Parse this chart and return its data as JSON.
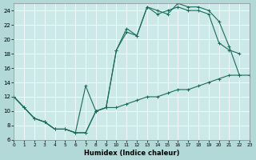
{
  "xlabel": "Humidex (Indice chaleur)",
  "bg_color": "#b2d8d8",
  "plot_bg_color": "#cce8e8",
  "grid_color": "#ffffff",
  "line_color": "#1a6b5a",
  "xlim": [
    0,
    23
  ],
  "ylim": [
    6,
    25
  ],
  "xticks": [
    0,
    1,
    2,
    3,
    4,
    5,
    6,
    7,
    8,
    9,
    10,
    11,
    12,
    13,
    14,
    15,
    16,
    17,
    18,
    19,
    20,
    21,
    22,
    23
  ],
  "yticks": [
    6,
    8,
    10,
    12,
    14,
    16,
    18,
    20,
    22,
    24
  ],
  "line1": {
    "x": [
      0,
      1,
      2,
      3,
      4,
      5,
      6,
      7,
      8,
      9,
      10,
      11,
      12,
      13,
      14,
      15,
      16,
      17,
      18,
      19,
      20,
      21,
      22,
      23
    ],
    "y": [
      12,
      10.5,
      9,
      8.5,
      7.5,
      7.5,
      7,
      7,
      10,
      10.5,
      10.5,
      11,
      11.5,
      12,
      12,
      12.5,
      13,
      13,
      13.5,
      14,
      14.5,
      15,
      15,
      15
    ]
  },
  "line2": {
    "x": [
      0,
      1,
      2,
      3,
      4,
      5,
      6,
      7,
      8,
      9,
      10,
      11,
      12,
      13,
      14,
      15,
      16,
      17,
      18,
      19,
      20,
      21,
      22
    ],
    "y": [
      12,
      10.5,
      9,
      8.5,
      7.5,
      7.5,
      7,
      7,
      10,
      10.5,
      18.5,
      21.5,
      20.5,
      24.5,
      24,
      23.5,
      25,
      24.5,
      24.5,
      24,
      22.5,
      19,
      15
    ]
  },
  "line3": {
    "x": [
      0,
      1,
      2,
      3,
      4,
      5,
      6,
      7,
      8,
      9,
      10,
      11,
      12,
      13,
      14,
      15,
      16,
      17,
      18,
      19,
      20,
      21,
      22
    ],
    "y": [
      12,
      10.5,
      9,
      8.5,
      7.5,
      7.5,
      7,
      13.5,
      10,
      10.5,
      18.5,
      21,
      20.5,
      24.5,
      23.5,
      24,
      24.5,
      24,
      24,
      23.5,
      19.5,
      18.5,
      18
    ]
  }
}
